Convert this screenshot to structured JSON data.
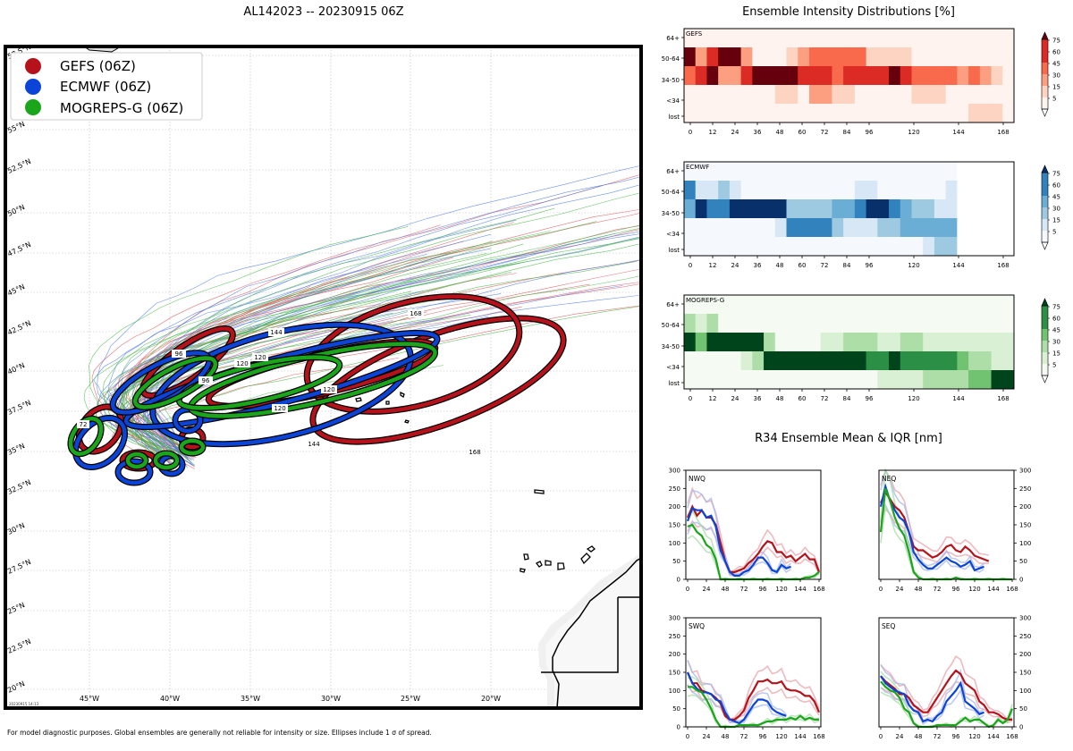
{
  "map": {
    "title": "AL142023 -- 20230915 06Z",
    "footnote": "For model diagnostic purposes. Global ensembles are generally not reliable for intensity or size. Ellipses include 1 σ of spread.",
    "stamp": "20230915 14:13",
    "legend": [
      {
        "label": "GEFS (06Z)",
        "color": "#b5121b"
      },
      {
        "label": "ECMWF (06Z)",
        "color": "#0b44d6"
      },
      {
        "label": "MOGREPS-G (06Z)",
        "color": "#1aa51a"
      }
    ],
    "lat_labels": [
      "57.5°N",
      "55°N",
      "52.5°N",
      "50°N",
      "47.5°N",
      "45°N",
      "42.5°N",
      "40°N",
      "37.5°N",
      "35°N",
      "32.5°N",
      "30°N",
      "27.5°N",
      "25°N",
      "22.5°N",
      "20°N"
    ],
    "lon_labels": [
      "45°W",
      "40°W",
      "35°W",
      "30°W",
      "25°W",
      "20°W"
    ],
    "ellipse_labels": {
      "gefs": [
        "168",
        "168",
        "96"
      ],
      "ecmwf": [
        "144",
        "144",
        "120"
      ],
      "mogreps": [
        "120",
        "120",
        "120",
        "96",
        "72"
      ]
    }
  },
  "chart_data": [
    {
      "type": "heatmap",
      "title": "Ensemble Intensity Distributions [%]",
      "panel": "GEFS",
      "x_ticks": [
        "0",
        "12",
        "24",
        "36",
        "48",
        "60",
        "72",
        "84",
        "96",
        "120",
        "144",
        "168"
      ],
      "rows": [
        "64+",
        "50-64",
        "34-50",
        "<34",
        "lost"
      ],
      "colorbar_ticks": [
        "75",
        "60",
        "45",
        "30",
        "15",
        "5"
      ],
      "cmap": "red",
      "values": [
        [
          5,
          5,
          5,
          5,
          5,
          5,
          5,
          5,
          5,
          5,
          5,
          5,
          5,
          5,
          5,
          5,
          5,
          5,
          5,
          5,
          5,
          5,
          5,
          5,
          5,
          5,
          5,
          5,
          5
        ],
        [
          75,
          40,
          60,
          75,
          75,
          35,
          5,
          10,
          5,
          20,
          30,
          45,
          45,
          45,
          45,
          45,
          20,
          20,
          20,
          20,
          5,
          5,
          5,
          5,
          5,
          5,
          5,
          5,
          5
        ],
        [
          45,
          60,
          75,
          30,
          30,
          60,
          75,
          75,
          75,
          75,
          60,
          60,
          60,
          45,
          60,
          60,
          60,
          60,
          75,
          60,
          45,
          45,
          45,
          45,
          40,
          45,
          30,
          15,
          5
        ],
        [
          5,
          5,
          5,
          5,
          5,
          5,
          5,
          5,
          20,
          20,
          5,
          30,
          30,
          15,
          15,
          5,
          5,
          5,
          5,
          5,
          25,
          25,
          25,
          5,
          5,
          5,
          5,
          5,
          5
        ],
        [
          5,
          5,
          5,
          5,
          5,
          5,
          5,
          5,
          5,
          5,
          5,
          5,
          5,
          5,
          5,
          5,
          5,
          5,
          5,
          5,
          5,
          5,
          5,
          5,
          5,
          20,
          20,
          20,
          5
        ]
      ]
    },
    {
      "type": "heatmap",
      "panel": "ECMWF",
      "x_ticks": [
        "0",
        "12",
        "24",
        "36",
        "48",
        "60",
        "72",
        "84",
        "96",
        "120",
        "144",
        "168"
      ],
      "rows": [
        "64+",
        "50-64",
        "34-50",
        "<34",
        "lost"
      ],
      "colorbar_ticks": [
        "75",
        "60",
        "45",
        "30",
        "15",
        "5"
      ],
      "cmap": "blue",
      "values": [
        [
          5,
          5,
          5,
          5,
          5,
          5,
          5,
          5,
          5,
          5,
          5,
          5,
          5,
          5,
          5,
          5,
          5,
          5,
          5,
          5,
          5,
          5,
          5,
          5,
          null,
          null,
          null,
          null,
          null
        ],
        [
          60,
          15,
          15,
          30,
          15,
          5,
          5,
          5,
          5,
          5,
          5,
          5,
          5,
          5,
          5,
          15,
          15,
          5,
          5,
          5,
          5,
          5,
          5,
          15,
          null,
          null,
          null,
          null,
          null
        ],
        [
          45,
          75,
          60,
          60,
          75,
          75,
          75,
          75,
          75,
          30,
          30,
          30,
          30,
          45,
          45,
          60,
          75,
          75,
          60,
          45,
          30,
          30,
          15,
          15,
          null,
          null,
          null,
          null,
          null
        ],
        [
          5,
          5,
          5,
          5,
          5,
          5,
          5,
          5,
          15,
          60,
          60,
          60,
          60,
          30,
          15,
          15,
          15,
          30,
          30,
          45,
          45,
          45,
          45,
          45,
          null,
          null,
          null,
          null,
          null
        ],
        [
          5,
          5,
          5,
          5,
          5,
          5,
          5,
          5,
          5,
          5,
          5,
          5,
          5,
          5,
          5,
          5,
          5,
          5,
          5,
          5,
          5,
          15,
          30,
          30,
          null,
          null,
          null,
          null,
          null
        ]
      ]
    },
    {
      "type": "heatmap",
      "panel": "MOGREPS-G",
      "x_ticks": [
        "0",
        "12",
        "24",
        "36",
        "48",
        "60",
        "72",
        "84",
        "96",
        "120",
        "144",
        "168"
      ],
      "rows": [
        "64+",
        "50-64",
        "34-50",
        "<34",
        "lost"
      ],
      "colorbar_ticks": [
        "75",
        "60",
        "45",
        "30",
        "15",
        "5"
      ],
      "cmap": "green",
      "values": [
        [
          5,
          5,
          5,
          5,
          5,
          5,
          5,
          5,
          5,
          5,
          5,
          5,
          5,
          5,
          5,
          5,
          5,
          5,
          5,
          5,
          5,
          5,
          5,
          5,
          5,
          5,
          5,
          5,
          5
        ],
        [
          30,
          15,
          30,
          5,
          5,
          5,
          5,
          5,
          5,
          5,
          5,
          5,
          5,
          5,
          5,
          5,
          5,
          5,
          5,
          5,
          5,
          5,
          5,
          5,
          5,
          5,
          5,
          5,
          5
        ],
        [
          75,
          45,
          75,
          75,
          75,
          75,
          75,
          30,
          5,
          5,
          5,
          5,
          15,
          15,
          30,
          30,
          30,
          15,
          15,
          30,
          30,
          15,
          15,
          15,
          15,
          15,
          15,
          15,
          15
        ],
        [
          5,
          5,
          5,
          5,
          5,
          15,
          30,
          75,
          75,
          75,
          75,
          75,
          75,
          75,
          75,
          75,
          60,
          60,
          75,
          60,
          60,
          60,
          60,
          60,
          45,
          40,
          30,
          15,
          15
        ],
        [
          5,
          5,
          5,
          5,
          5,
          5,
          5,
          5,
          5,
          5,
          5,
          5,
          5,
          5,
          5,
          5,
          5,
          15,
          15,
          15,
          15,
          30,
          30,
          30,
          30,
          45,
          45,
          75,
          75
        ]
      ]
    },
    {
      "type": "line",
      "title": "R34 Ensemble Mean & IQR [nm]",
      "panels": [
        "NWQ",
        "NEQ",
        "SWQ",
        "SEQ"
      ],
      "x_ticks": [
        "0",
        "24",
        "48",
        "72",
        "96",
        "120",
        "144",
        "168"
      ],
      "y_ticks": [
        "0",
        "50",
        "100",
        "150",
        "200",
        "250",
        "300"
      ],
      "ylim": [
        0,
        300
      ],
      "x": [
        0,
        6,
        12,
        18,
        24,
        30,
        36,
        42,
        48,
        54,
        60,
        66,
        72,
        78,
        84,
        90,
        96,
        102,
        108,
        114,
        120,
        126,
        132,
        138,
        144,
        150,
        156,
        162,
        168
      ],
      "NWQ": {
        "gefs": [
          170,
          200,
          175,
          190,
          170,
          170,
          150,
          100,
          50,
          20,
          20,
          25,
          30,
          45,
          55,
          70,
          90,
          105,
          100,
          75,
          75,
          60,
          65,
          50,
          60,
          70,
          55,
          55,
          20
        ],
        "ecmwf": [
          160,
          195,
          190,
          190,
          170,
          175,
          145,
          80,
          50,
          20,
          10,
          10,
          20,
          25,
          40,
          60,
          60,
          45,
          25,
          20,
          40,
          30,
          35,
          null,
          null,
          null,
          null,
          null,
          null
        ],
        "mogreps": [
          145,
          150,
          130,
          120,
          95,
          85,
          55,
          0,
          0,
          0,
          0,
          0,
          0,
          0,
          0,
          0,
          0,
          0,
          0,
          0,
          0,
          0,
          0,
          0,
          0,
          5,
          5,
          10,
          20
        ]
      },
      "NEQ": {
        "gefs": [
          210,
          240,
          220,
          200,
          190,
          170,
          130,
          90,
          80,
          80,
          70,
          60,
          65,
          75,
          90,
          95,
          80,
          75,
          90,
          80,
          65,
          60,
          55,
          50,
          null,
          null,
          null,
          null,
          null
        ],
        "ecmwf": [
          200,
          255,
          215,
          190,
          170,
          160,
          130,
          75,
          55,
          40,
          30,
          30,
          40,
          50,
          60,
          50,
          45,
          35,
          40,
          50,
          25,
          30,
          35,
          null,
          null,
          null,
          null,
          null,
          null
        ],
        "mogreps": [
          130,
          250,
          215,
          170,
          140,
          120,
          75,
          20,
          5,
          0,
          0,
          0,
          0,
          0,
          0,
          0,
          5,
          0,
          0,
          0,
          0,
          0,
          0,
          0,
          0,
          0,
          0,
          0,
          0
        ]
      },
      "SWQ": {
        "gefs": [
          150,
          120,
          120,
          100,
          95,
          90,
          80,
          65,
          30,
          20,
          20,
          30,
          45,
          80,
          100,
          125,
          125,
          130,
          120,
          120,
          125,
          105,
          100,
          100,
          95,
          85,
          85,
          70,
          40
        ],
        "ecmwf": [
          150,
          120,
          105,
          95,
          95,
          90,
          75,
          70,
          40,
          20,
          15,
          10,
          20,
          40,
          60,
          75,
          75,
          70,
          50,
          40,
          35,
          30,
          null,
          null,
          null,
          null,
          null,
          null,
          null
        ],
        "mogreps": [
          110,
          110,
          100,
          95,
          75,
          50,
          20,
          0,
          0,
          0,
          0,
          5,
          5,
          5,
          5,
          5,
          10,
          15,
          15,
          20,
          20,
          20,
          25,
          20,
          30,
          20,
          25,
          20,
          20
        ]
      },
      "SEQ": {
        "gefs": [
          140,
          125,
          115,
          105,
          90,
          90,
          80,
          60,
          50,
          40,
          40,
          60,
          80,
          100,
          120,
          140,
          155,
          145,
          120,
          110,
          100,
          70,
          60,
          40,
          40,
          35,
          25,
          20,
          20
        ],
        "ecmwf": [
          140,
          120,
          110,
          100,
          95,
          90,
          60,
          45,
          40,
          15,
          20,
          15,
          30,
          40,
          70,
          85,
          100,
          120,
          70,
          60,
          50,
          35,
          40,
          null,
          null,
          null,
          null,
          null,
          null
        ],
        "mogreps": [
          125,
          110,
          100,
          95,
          80,
          50,
          40,
          10,
          0,
          0,
          0,
          0,
          5,
          5,
          5,
          5,
          5,
          15,
          25,
          15,
          20,
          20,
          10,
          0,
          5,
          20,
          10,
          20,
          50
        ]
      }
    }
  ]
}
